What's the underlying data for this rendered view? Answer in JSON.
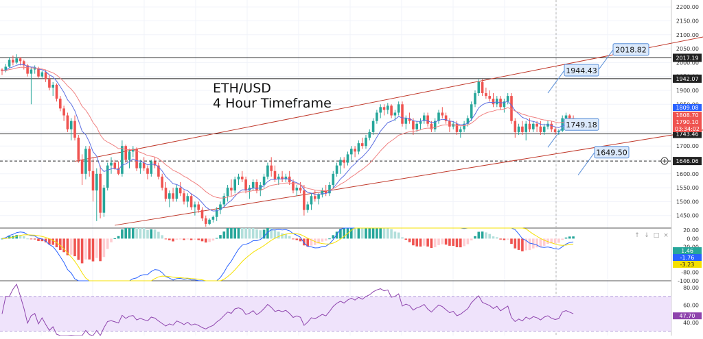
{
  "overlay": {
    "pair": "ETH/USD",
    "timeframe": "4 Hour Timeframe"
  },
  "colors": {
    "bull": "#26a69a",
    "bear": "#ef5350",
    "hline": "#222222",
    "channel": "#c0392b",
    "ema_fast": "#5b6ee1",
    "ema_slow": "#f08080",
    "callout_bg": "#dbe9fb",
    "callout_border": "#5a8fd8",
    "rsi_band": "#efe3fb",
    "rsi_line": "#8e44ad",
    "macd_line": "#2962ff",
    "signal_line": "#f5e000",
    "hist_pos_strong": "#26a69a",
    "hist_pos_weak": "#b2dfdb",
    "hist_neg_strong": "#ef5350",
    "hist_neg_weak": "#ffcdd2"
  },
  "chart_data": {
    "type": "candlestick",
    "symbol": "ETH/USD",
    "price_axis": {
      "range": [
        1405,
        2225
      ],
      "ticks": [
        "2200.00",
        "2150.00",
        "2100.00",
        "2050.00",
        "2000.00",
        "1950.00",
        "1900.00",
        "1850.00",
        "1800.00",
        "1750.00",
        "1700.00",
        "1650.00",
        "1600.00",
        "1550.00",
        "1500.00",
        "1450.00"
      ]
    },
    "horizontal_levels": [
      {
        "value": 2017.19,
        "label": "2017.19",
        "style": "solid"
      },
      {
        "value": 1942.07,
        "label": "1942.07",
        "style": "solid"
      },
      {
        "value": 1743.46,
        "label": "1743.46",
        "style": "solid"
      },
      {
        "value": 1646.06,
        "label": "1646.06",
        "style": "dashed"
      }
    ],
    "callouts": [
      {
        "value": 2018.82,
        "label": "2018.82"
      },
      {
        "value": 1944.43,
        "label": "1944.43"
      },
      {
        "value": 1749.18,
        "label": "1749.18"
      },
      {
        "value": 1649.5,
        "label": "1649.50"
      }
    ],
    "price_tags": [
      {
        "value": 1809.08,
        "label": "1809.08",
        "color": "#2962ff"
      },
      {
        "value": 1808.7,
        "label": "1808.70",
        "color": "#ef5350"
      },
      {
        "value": 1790.1,
        "label": "1790.10",
        "color": "#ef5350",
        "countdown": "03:34:02"
      }
    ],
    "channel": {
      "upper": [
        [
          20,
          1645
        ],
        [
          215,
          2150
        ]
      ],
      "lower": [
        [
          31,
          1415
        ],
        [
          215,
          1805
        ]
      ]
    },
    "candles": [
      [
        1975,
        1980,
        1955,
        1970
      ],
      [
        1970,
        1995,
        1965,
        1985
      ],
      [
        1985,
        2020,
        1980,
        2010
      ],
      [
        2010,
        2025,
        1990,
        2000
      ],
      [
        2000,
        2030,
        1995,
        2015
      ],
      [
        2015,
        2020,
        1990,
        2005
      ],
      [
        2005,
        2010,
        1975,
        1990
      ],
      [
        1990,
        1995,
        1950,
        1960
      ],
      [
        1960,
        1985,
        1850,
        1975
      ],
      [
        1975,
        1990,
        1960,
        1980
      ],
      [
        1980,
        1985,
        1945,
        1950
      ],
      [
        1950,
        1970,
        1945,
        1965
      ],
      [
        1965,
        1975,
        1930,
        1940
      ],
      [
        1940,
        1955,
        1900,
        1910
      ],
      [
        1910,
        1930,
        1880,
        1920
      ],
      [
        1920,
        1925,
        1860,
        1870
      ],
      [
        1870,
        1880,
        1825,
        1835
      ],
      [
        1835,
        1845,
        1790,
        1810
      ],
      [
        1810,
        1820,
        1750,
        1760
      ],
      [
        1760,
        1800,
        1720,
        1790
      ],
      [
        1790,
        1810,
        1720,
        1730
      ],
      [
        1730,
        1740,
        1640,
        1650
      ],
      [
        1650,
        1670,
        1560,
        1600
      ],
      [
        1600,
        1700,
        1580,
        1690
      ],
      [
        1690,
        1700,
        1590,
        1610
      ],
      [
        1610,
        1660,
        1500,
        1540
      ],
      [
        1540,
        1620,
        1430,
        1600
      ],
      [
        1600,
        1630,
        1440,
        1460
      ],
      [
        1460,
        1560,
        1445,
        1550
      ],
      [
        1550,
        1640,
        1540,
        1630
      ],
      [
        1630,
        1660,
        1600,
        1640
      ],
      [
        1640,
        1650,
        1615,
        1620
      ],
      [
        1620,
        1645,
        1595,
        1600
      ],
      [
        1600,
        1720,
        1590,
        1700
      ],
      [
        1700,
        1705,
        1640,
        1650
      ],
      [
        1650,
        1690,
        1620,
        1680
      ],
      [
        1680,
        1700,
        1660,
        1690
      ],
      [
        1690,
        1695,
        1610,
        1620
      ],
      [
        1620,
        1650,
        1600,
        1640
      ],
      [
        1640,
        1660,
        1610,
        1620
      ],
      [
        1620,
        1630,
        1580,
        1600
      ],
      [
        1600,
        1650,
        1590,
        1645
      ],
      [
        1645,
        1660,
        1620,
        1630
      ],
      [
        1630,
        1640,
        1580,
        1590
      ],
      [
        1590,
        1600,
        1540,
        1550
      ],
      [
        1550,
        1570,
        1500,
        1510
      ],
      [
        1510,
        1540,
        1480,
        1530
      ],
      [
        1530,
        1550,
        1500,
        1510
      ],
      [
        1510,
        1560,
        1500,
        1550
      ],
      [
        1550,
        1570,
        1520,
        1530
      ],
      [
        1530,
        1540,
        1490,
        1500
      ],
      [
        1500,
        1530,
        1480,
        1520
      ],
      [
        1520,
        1530,
        1470,
        1480
      ],
      [
        1480,
        1500,
        1450,
        1490
      ],
      [
        1490,
        1500,
        1460,
        1470
      ],
      [
        1470,
        1480,
        1430,
        1440
      ],
      [
        1440,
        1450,
        1410,
        1420
      ],
      [
        1420,
        1440,
        1415,
        1435
      ],
      [
        1435,
        1450,
        1425,
        1445
      ],
      [
        1445,
        1480,
        1430,
        1470
      ],
      [
        1470,
        1500,
        1455,
        1490
      ],
      [
        1490,
        1530,
        1480,
        1520
      ],
      [
        1520,
        1560,
        1500,
        1550
      ],
      [
        1550,
        1580,
        1520,
        1540
      ],
      [
        1540,
        1590,
        1530,
        1580
      ],
      [
        1580,
        1600,
        1560,
        1590
      ],
      [
        1590,
        1610,
        1570,
        1580
      ],
      [
        1580,
        1590,
        1530,
        1540
      ],
      [
        1540,
        1560,
        1510,
        1550
      ],
      [
        1550,
        1580,
        1540,
        1570
      ],
      [
        1570,
        1580,
        1530,
        1540
      ],
      [
        1540,
        1570,
        1520,
        1560
      ],
      [
        1560,
        1600,
        1550,
        1590
      ],
      [
        1590,
        1640,
        1580,
        1630
      ],
      [
        1630,
        1660,
        1590,
        1610
      ],
      [
        1610,
        1630,
        1570,
        1580
      ],
      [
        1580,
        1600,
        1560,
        1590
      ],
      [
        1590,
        1610,
        1570,
        1580
      ],
      [
        1580,
        1600,
        1570,
        1590
      ],
      [
        1590,
        1610,
        1560,
        1570
      ],
      [
        1570,
        1580,
        1530,
        1540
      ],
      [
        1540,
        1560,
        1520,
        1550
      ],
      [
        1550,
        1570,
        1530,
        1540
      ],
      [
        1540,
        1560,
        1450,
        1470
      ],
      [
        1470,
        1500,
        1460,
        1490
      ],
      [
        1490,
        1530,
        1470,
        1520
      ],
      [
        1520,
        1540,
        1500,
        1510
      ],
      [
        1510,
        1530,
        1490,
        1525
      ],
      [
        1525,
        1550,
        1515,
        1540
      ],
      [
        1540,
        1560,
        1520,
        1530
      ],
      [
        1530,
        1570,
        1520,
        1560
      ],
      [
        1560,
        1610,
        1550,
        1600
      ],
      [
        1600,
        1640,
        1590,
        1630
      ],
      [
        1630,
        1660,
        1600,
        1650
      ],
      [
        1650,
        1660,
        1620,
        1640
      ],
      [
        1640,
        1680,
        1630,
        1670
      ],
      [
        1670,
        1700,
        1650,
        1690
      ],
      [
        1690,
        1700,
        1660,
        1680
      ],
      [
        1680,
        1720,
        1670,
        1710
      ],
      [
        1710,
        1730,
        1690,
        1700
      ],
      [
        1700,
        1740,
        1690,
        1730
      ],
      [
        1730,
        1760,
        1720,
        1750
      ],
      [
        1750,
        1800,
        1740,
        1790
      ],
      [
        1790,
        1830,
        1780,
        1820
      ],
      [
        1820,
        1850,
        1800,
        1840
      ],
      [
        1840,
        1850,
        1810,
        1830
      ],
      [
        1830,
        1855,
        1815,
        1845
      ],
      [
        1845,
        1850,
        1800,
        1810
      ],
      [
        1810,
        1830,
        1790,
        1820
      ],
      [
        1820,
        1860,
        1810,
        1850
      ],
      [
        1850,
        1860,
        1770,
        1780
      ],
      [
        1780,
        1810,
        1760,
        1800
      ],
      [
        1800,
        1820,
        1780,
        1790
      ],
      [
        1790,
        1800,
        1740,
        1760
      ],
      [
        1760,
        1790,
        1750,
        1780
      ],
      [
        1780,
        1800,
        1760,
        1790
      ],
      [
        1790,
        1820,
        1780,
        1810
      ],
      [
        1810,
        1820,
        1770,
        1780
      ],
      [
        1780,
        1790,
        1750,
        1760
      ],
      [
        1760,
        1800,
        1750,
        1790
      ],
      [
        1790,
        1830,
        1780,
        1820
      ],
      [
        1820,
        1840,
        1800,
        1810
      ],
      [
        1810,
        1820,
        1780,
        1790
      ],
      [
        1790,
        1800,
        1750,
        1770
      ],
      [
        1770,
        1790,
        1760,
        1780
      ],
      [
        1780,
        1790,
        1740,
        1750
      ],
      [
        1750,
        1770,
        1730,
        1760
      ],
      [
        1760,
        1790,
        1750,
        1780
      ],
      [
        1780,
        1810,
        1770,
        1800
      ],
      [
        1800,
        1860,
        1790,
        1850
      ],
      [
        1850,
        1900,
        1840,
        1890
      ],
      [
        1890,
        1940,
        1880,
        1930
      ],
      [
        1930,
        1940,
        1880,
        1890
      ],
      [
        1890,
        1910,
        1870,
        1880
      ],
      [
        1880,
        1900,
        1860,
        1870
      ],
      [
        1870,
        1890,
        1840,
        1850
      ],
      [
        1850,
        1880,
        1840,
        1870
      ],
      [
        1870,
        1880,
        1830,
        1840
      ],
      [
        1840,
        1870,
        1820,
        1860
      ],
      [
        1860,
        1890,
        1850,
        1880
      ],
      [
        1880,
        1890,
        1780,
        1790
      ],
      [
        1790,
        1800,
        1730,
        1750
      ],
      [
        1750,
        1780,
        1740,
        1770
      ],
      [
        1770,
        1790,
        1740,
        1750
      ],
      [
        1750,
        1790,
        1720,
        1780
      ],
      [
        1780,
        1800,
        1750,
        1760
      ],
      [
        1760,
        1790,
        1750,
        1780
      ],
      [
        1780,
        1790,
        1750,
        1770
      ],
      [
        1770,
        1790,
        1740,
        1750
      ],
      [
        1750,
        1780,
        1740,
        1770
      ],
      [
        1770,
        1790,
        1760,
        1780
      ],
      [
        1780,
        1790,
        1750,
        1760
      ],
      [
        1760,
        1770,
        1740,
        1750
      ],
      [
        1750,
        1760,
        1740,
        1755
      ],
      [
        1755,
        1810,
        1750,
        1800
      ],
      [
        1800,
        1820,
        1780,
        1810
      ],
      [
        1810,
        1815,
        1780,
        1800
      ],
      [
        1800,
        1810,
        1770,
        1790
      ]
    ],
    "macd": {
      "axis_ticks": [
        "20.00",
        "0.00",
        "-20.00",
        "-40.00",
        "-60.00",
        "-80.00",
        "-100.00"
      ],
      "range": [
        -100,
        25
      ],
      "value_tags": [
        {
          "value": 1.46,
          "label": "1.46"
        },
        {
          "value": -1.76,
          "label": "-1.76"
        },
        {
          "value": -3.23,
          "label": "-3.23"
        }
      ]
    },
    "rsi": {
      "axis_ticks": [
        "80.00",
        "60.00",
        "40.00"
      ],
      "range": [
        25,
        88
      ],
      "band": [
        30,
        70
      ],
      "last": {
        "value": 47.7,
        "label": "47.70"
      }
    }
  }
}
